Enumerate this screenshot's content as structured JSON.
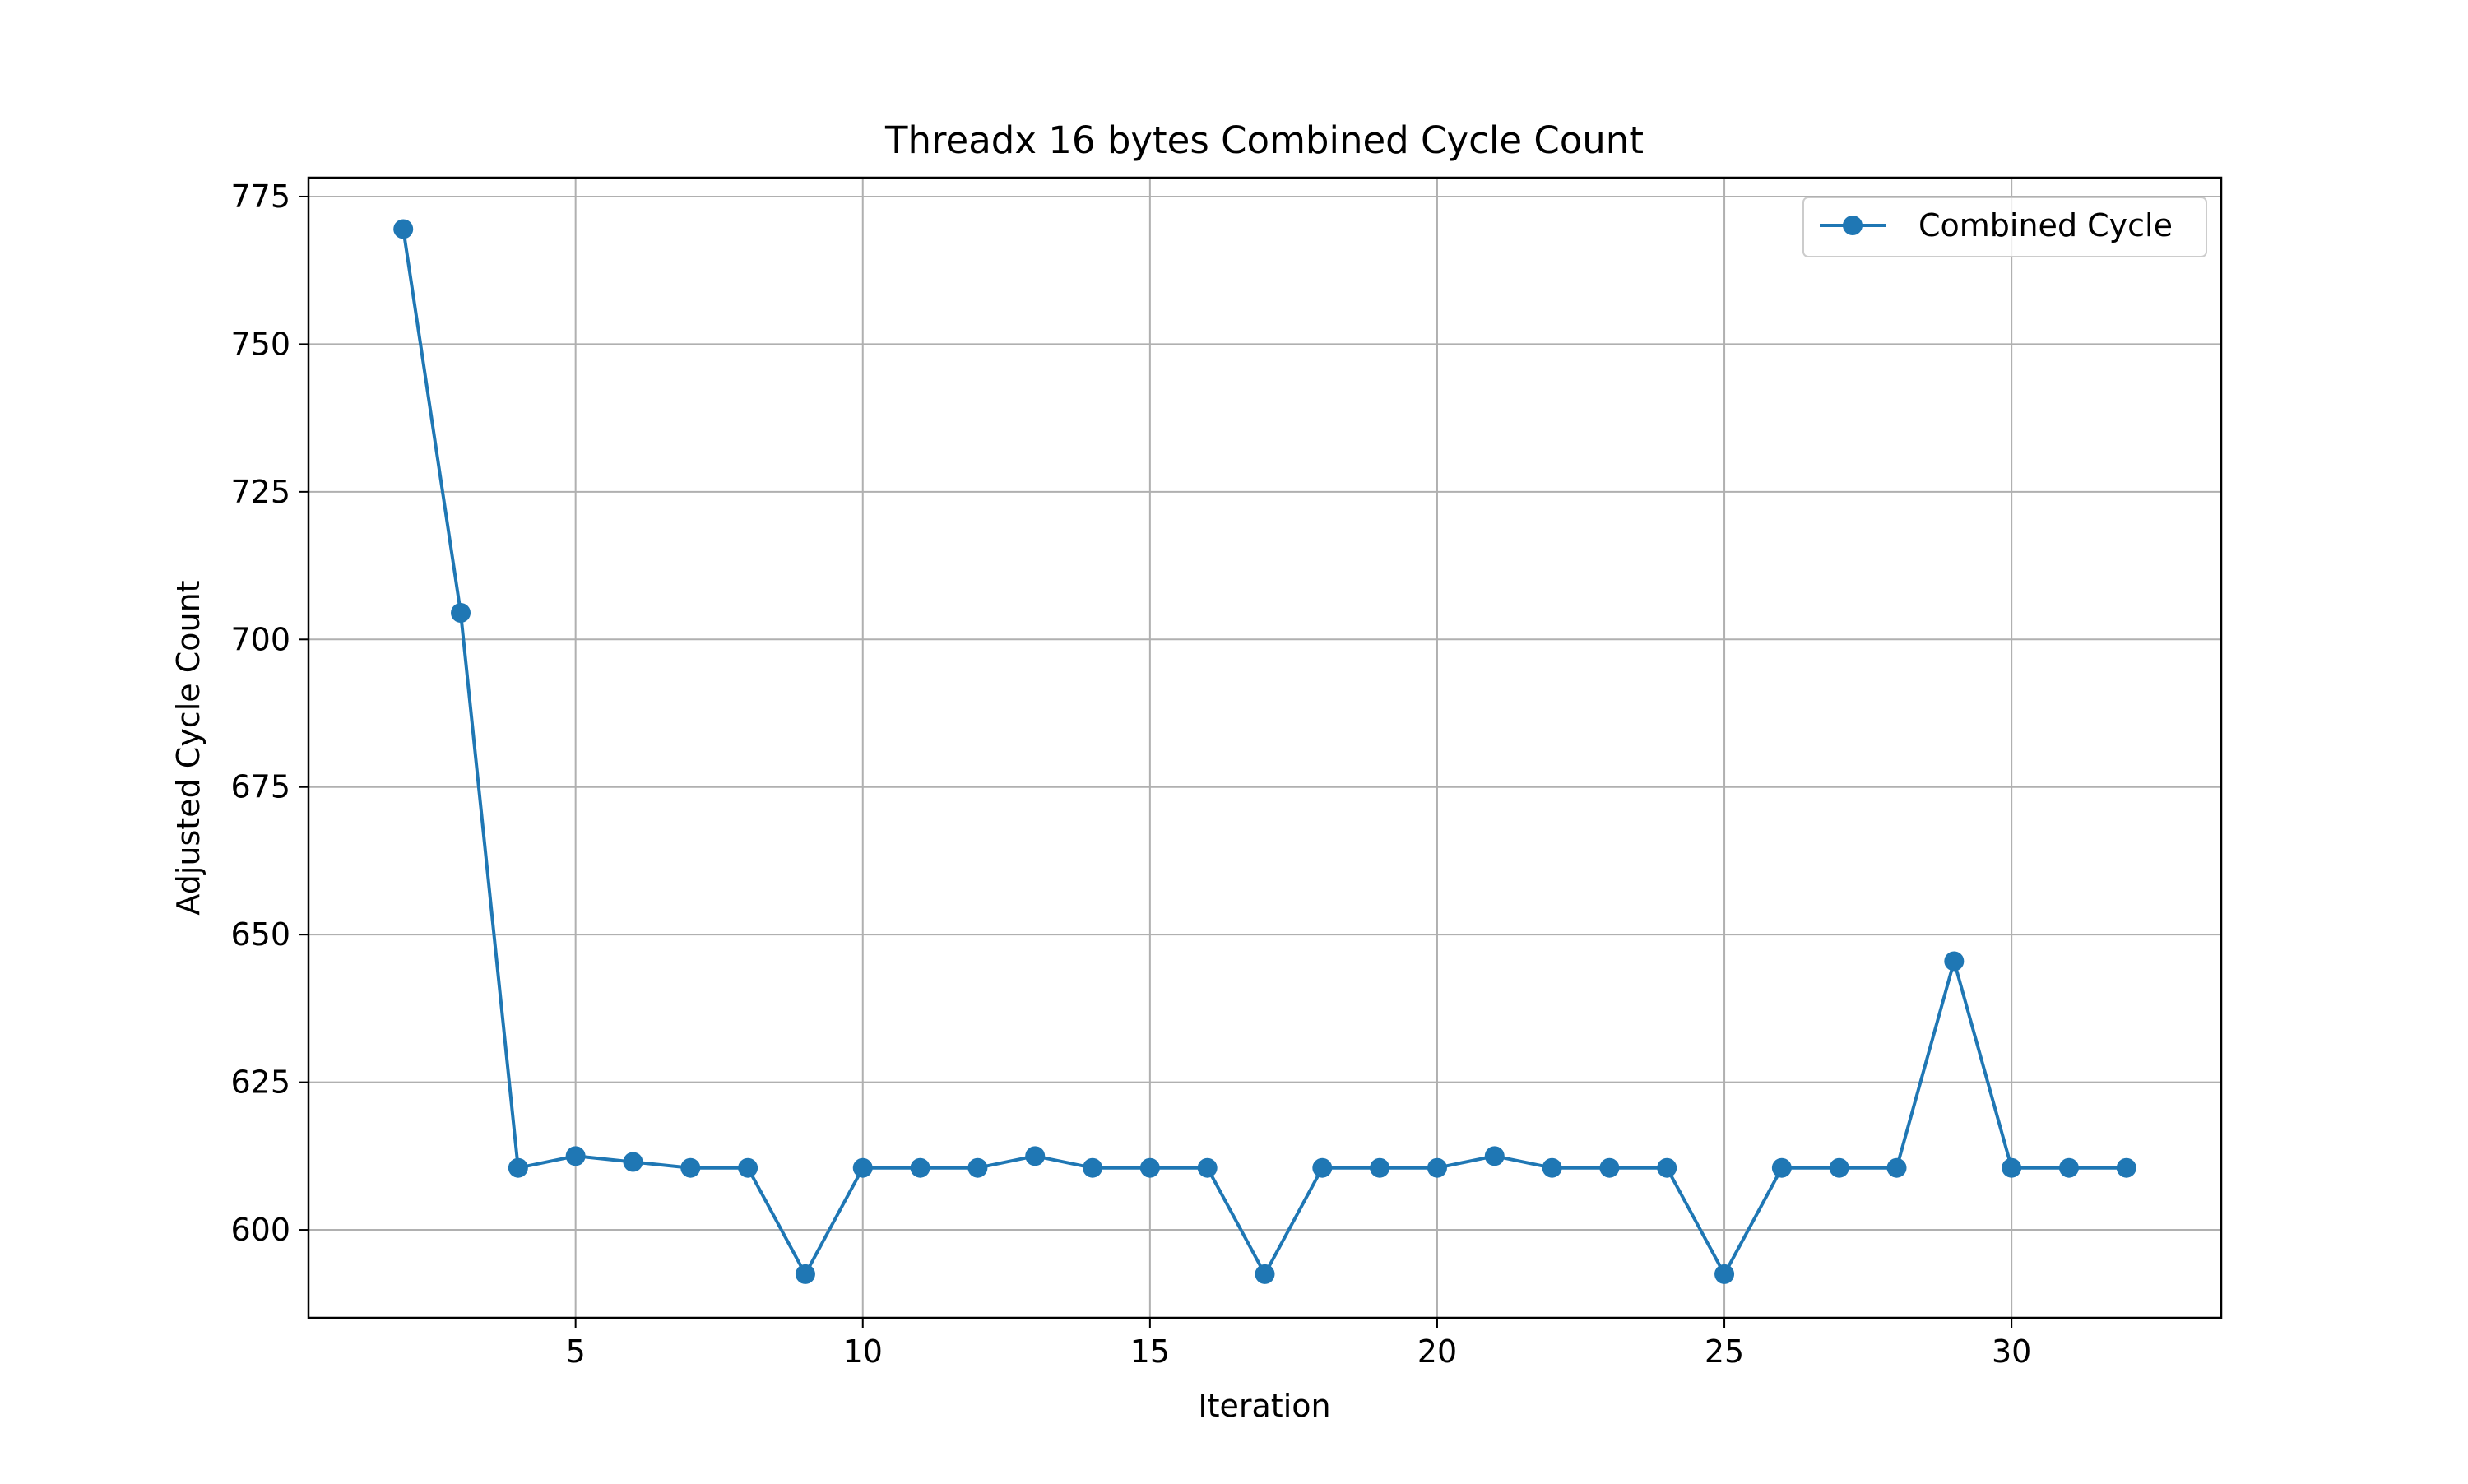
{
  "chart_data": {
    "type": "line",
    "title": "Threadx 16 bytes Combined Cycle Count",
    "xlabel": "Iteration",
    "ylabel": "Adjusted Cycle Count",
    "xlim": [
      0.35,
      33.65
    ],
    "ylim": [
      585.1,
      778.2
    ],
    "x_ticks": [
      5,
      10,
      15,
      20,
      25,
      30
    ],
    "y_ticks": [
      600,
      625,
      650,
      675,
      700,
      725,
      750,
      775
    ],
    "grid": true,
    "legend_position": "upper right",
    "series_color": "#1f77b4",
    "series": [
      {
        "name": "Combined Cycle",
        "x": [
          2,
          3,
          4,
          5,
          6,
          7,
          8,
          9,
          10,
          11,
          12,
          13,
          14,
          15,
          16,
          17,
          18,
          19,
          20,
          21,
          22,
          23,
          24,
          25,
          26,
          27,
          28,
          29,
          30,
          31,
          32
        ],
        "values": [
          769.5,
          704.5,
          610.5,
          612.5,
          611.5,
          610.5,
          610.5,
          592.5,
          610.5,
          610.5,
          610.5,
          612.5,
          610.5,
          610.5,
          610.5,
          592.5,
          610.5,
          610.5,
          610.5,
          612.5,
          610.5,
          610.5,
          610.5,
          592.5,
          610.5,
          610.5,
          610.5,
          645.5,
          610.5,
          610.5,
          610.5
        ]
      }
    ]
  }
}
